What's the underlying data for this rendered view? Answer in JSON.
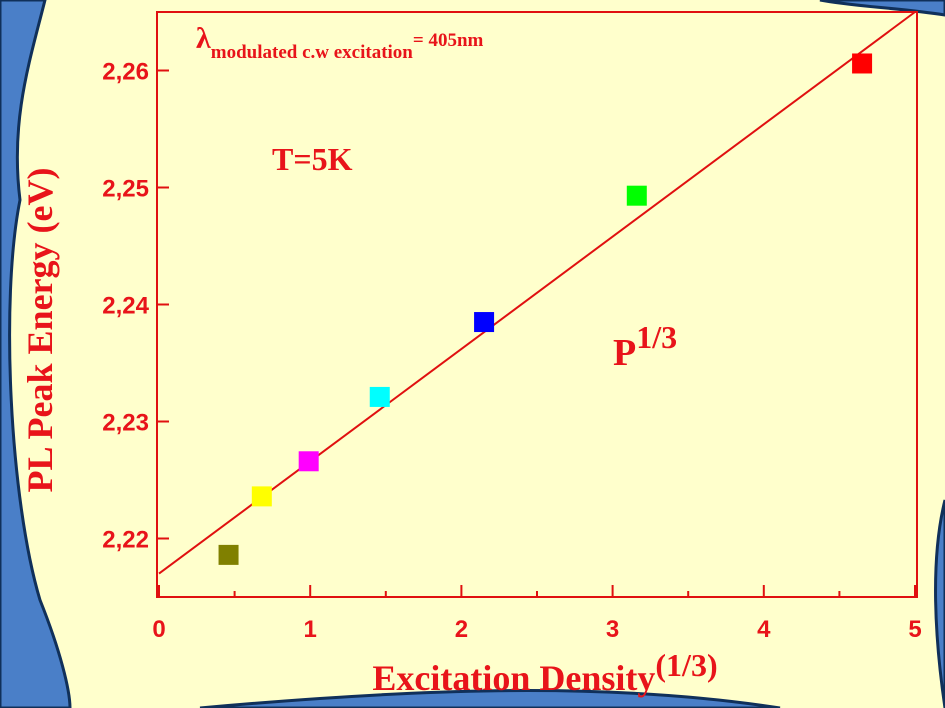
{
  "chart_data": {
    "type": "scatter",
    "xlabel": "Excitation Density",
    "xlabel_sup": "(1/3)",
    "ylabel": "PL Peak Energy (eV)",
    "annotations": [
      "λ",
      "modulated c.w excitation",
      "= 405nm",
      "T=5K",
      "P",
      "1/3"
    ],
    "series": [
      {
        "x": [
          0.46,
          0.68,
          0.99,
          1.46,
          2.15,
          3.16,
          4.65
        ],
        "values": [
          2.2186,
          2.2236,
          2.2266,
          2.2321,
          2.2385,
          2.2493,
          2.2606
        ],
        "colors": [
          "#808000",
          "#ffff00",
          "#ff00ff",
          "#00ffff",
          "#0000ff",
          "#00ff00",
          "#ff0000"
        ]
      }
    ],
    "fit": {
      "x": [
        0,
        5
      ],
      "values": [
        2.217,
        2.265
      ],
      "color": "#e01010"
    },
    "xlim": [
      0,
      5
    ],
    "ylim": [
      2.215,
      2.265
    ],
    "xticks": [
      0,
      1,
      2,
      3,
      4,
      5
    ],
    "xminorticks": [
      0.5,
      1.5,
      2.5,
      3.5,
      4.5
    ],
    "yticks": [
      {
        "value": 2.22,
        "label": "2,22"
      },
      {
        "value": 2.23,
        "label": "2,23"
      },
      {
        "value": 2.24,
        "label": "2,24"
      },
      {
        "value": 2.25,
        "label": "2,25"
      },
      {
        "value": 2.26,
        "label": "2,26"
      }
    ],
    "axis_color": "#e01010"
  }
}
